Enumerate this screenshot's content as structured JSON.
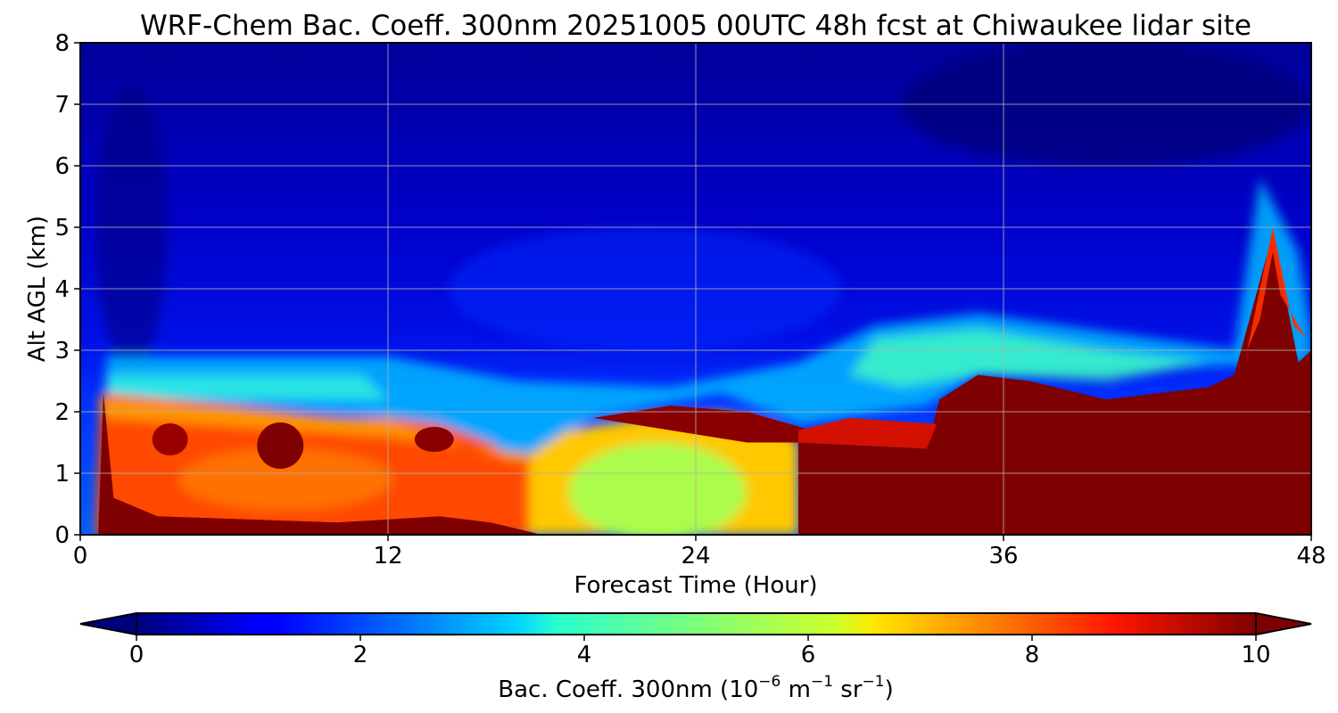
{
  "chart_data": {
    "type": "heatmap",
    "title": "WRF-Chem Bac. Coeff. 300nm  20251005 00UTC 48h fcst at Chiwaukee lidar site",
    "xlabel": "Forecast Time (Hour)",
    "ylabel": "Alt AGL (km)",
    "xlim": [
      0,
      48
    ],
    "ylim": [
      0,
      8
    ],
    "x_ticks": [
      "0",
      "12",
      "24",
      "36",
      "48"
    ],
    "y_ticks": [
      "0",
      "1",
      "2",
      "3",
      "4",
      "5",
      "6",
      "7",
      "8"
    ],
    "grid": true,
    "colorbar": {
      "label_main": "Bac. Coeff. 300nm  (10",
      "label_exp1": "−6",
      "label_mid": " m",
      "label_exp2": "−1",
      "label_mid2": " sr",
      "label_exp3": "−1",
      "label_end": ")",
      "range": [
        0,
        10
      ],
      "ticks": [
        "0",
        "2",
        "4",
        "6",
        "8",
        "10"
      ],
      "colormap": "jet",
      "extend": "both"
    },
    "description_fields": {
      "boundary_layer_top_km": [
        [
          0,
          0.0
        ],
        [
          1,
          2.3
        ],
        [
          12,
          1.9
        ],
        [
          17,
          1.2
        ],
        [
          20,
          1.9
        ],
        [
          25,
          2.3
        ],
        [
          28,
          1.7
        ],
        [
          33,
          1.8
        ],
        [
          35,
          2.6
        ],
        [
          40,
          2.2
        ],
        [
          44,
          2.4
        ],
        [
          45,
          2.5
        ],
        [
          46.5,
          4.9
        ],
        [
          48,
          3.0
        ]
      ]
    }
  }
}
